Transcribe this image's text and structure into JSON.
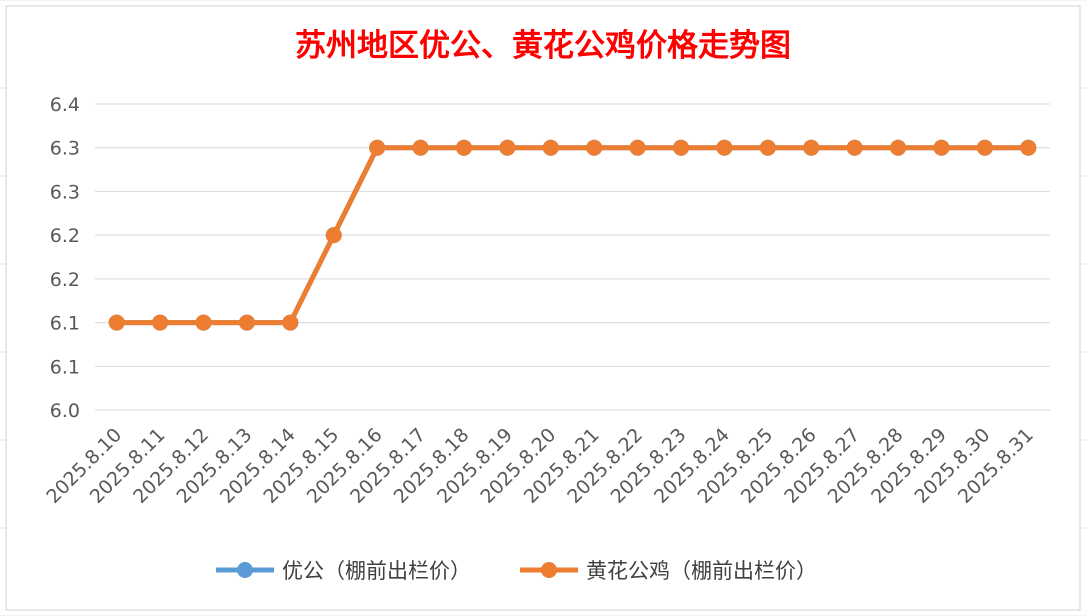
{
  "chart_data": {
    "type": "line",
    "title": "苏州地区优公、黄花公鸡价格走势图",
    "xlabel": "",
    "ylabel": "",
    "categories": [
      "2025.8.10",
      "2025.8.11",
      "2025.8.12",
      "2025.8.13",
      "2025.8.14",
      "2025.8.15",
      "2025.8.16",
      "2025.8.17",
      "2025.8.18",
      "2025.8.19",
      "2025.8.20",
      "2025.8.21",
      "2025.8.22",
      "2025.8.23",
      "2025.8.24",
      "2025.8.25",
      "2025.8.26",
      "2025.8.27",
      "2025.8.28",
      "2025.8.29",
      "2025.8.30",
      "2025.8.31"
    ],
    "ylim": [
      6.0,
      6.35
    ],
    "y_tick_values": [
      6.0,
      6.05,
      6.1,
      6.15,
      6.2,
      6.25,
      6.3,
      6.35
    ],
    "y_tick_labels": [
      "6.0",
      "6.1",
      "6.1",
      "6.2",
      "6.2",
      "6.3",
      "6.3",
      "6.4"
    ],
    "grid": true,
    "legend_position": "bottom",
    "series": [
      {
        "name": "优公（棚前出栏价）",
        "color": "#5b9bd5",
        "values": [
          6.1,
          6.1,
          6.1,
          6.1,
          6.1,
          6.2,
          6.3,
          6.3,
          6.3,
          6.3,
          6.3,
          6.3,
          6.3,
          6.3,
          6.3,
          6.3,
          6.3,
          6.3,
          6.3,
          6.3,
          6.3,
          6.3
        ]
      },
      {
        "name": "黄花公鸡（棚前出栏价）",
        "color": "#ed7d31",
        "values": [
          6.1,
          6.1,
          6.1,
          6.1,
          6.1,
          6.2,
          6.3,
          6.3,
          6.3,
          6.3,
          6.3,
          6.3,
          6.3,
          6.3,
          6.3,
          6.3,
          6.3,
          6.3,
          6.3,
          6.3,
          6.3,
          6.3
        ]
      }
    ]
  }
}
